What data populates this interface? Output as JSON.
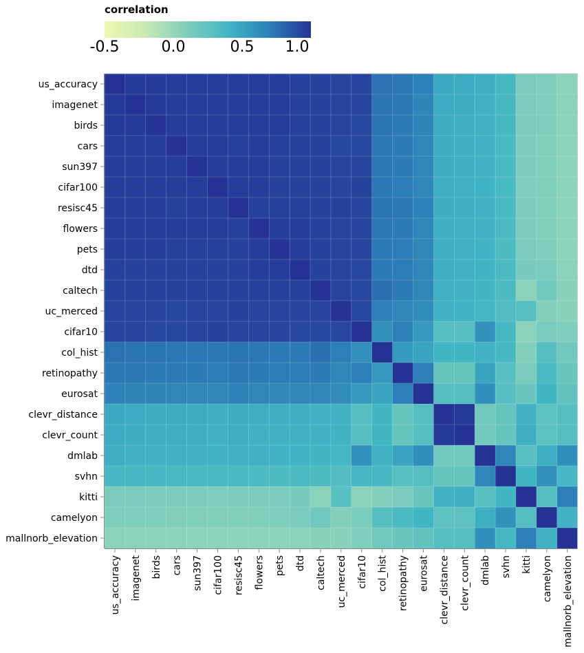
{
  "legend": {
    "title": "correlation",
    "ticks": [
      "-0.5",
      "0.0",
      "0.5",
      "1.0"
    ],
    "colors": [
      "#edf8b1",
      "#c7e9b4",
      "#7fcdbb",
      "#41b6c4",
      "#2c7fb8",
      "#253494"
    ]
  },
  "chart_data": {
    "type": "heatmap",
    "title": "",
    "color_label": "correlation",
    "color_range": [
      -0.5,
      1.0
    ],
    "labels": [
      "us_accuracy",
      "imagenet",
      "birds",
      "cars",
      "sun397",
      "cifar100",
      "resisc45",
      "flowers",
      "pets",
      "dtd",
      "caltech",
      "uc_merced",
      "cifar10",
      "col_hist",
      "retinopathy",
      "eurosat",
      "clevr_distance",
      "clevr_count",
      "dmlab",
      "svhn",
      "kitti",
      "camelyon",
      "smallnorb_elevation"
    ],
    "ytick_labels": [
      "us_accuracy",
      "imagenet",
      "birds",
      "cars",
      "sun397",
      "cifar100",
      "resisc45",
      "flowers",
      "pets",
      "dtd",
      "caltech",
      "uc_merced",
      "cifar10",
      "col_hist",
      "retinopathy",
      "eurosat",
      "clevr_distance",
      "clevr_count",
      "dmlab",
      "svhn",
      "kitti",
      "camelyon",
      "mallnorb_elevation"
    ],
    "xtick_labels": [
      "us_accuracy",
      "imagenet",
      "birds",
      "cars",
      "sun397",
      "cifar100",
      "resisc45",
      "flowers",
      "pets",
      "dtd",
      "caltech",
      "uc_merced",
      "cifar10",
      "col_hist",
      "retinopathy",
      "eurosat",
      "clevr_distance",
      "clevr_count",
      "dmlab",
      "svhn",
      "kitti",
      "camelyon",
      "mallnorb_elevation"
    ],
    "matrix": [
      [
        1.0,
        0.97,
        0.97,
        0.96,
        0.96,
        0.96,
        0.96,
        0.96,
        0.96,
        0.95,
        0.94,
        0.93,
        0.93,
        0.75,
        0.73,
        0.68,
        0.47,
        0.46,
        0.44,
        0.38,
        0.12,
        0.1,
        0.05
      ],
      [
        0.97,
        1.0,
        0.97,
        0.96,
        0.96,
        0.96,
        0.96,
        0.96,
        0.96,
        0.95,
        0.94,
        0.93,
        0.93,
        0.74,
        0.73,
        0.67,
        0.46,
        0.45,
        0.43,
        0.37,
        0.12,
        0.1,
        0.05
      ],
      [
        0.97,
        0.97,
        1.0,
        0.96,
        0.96,
        0.96,
        0.96,
        0.96,
        0.96,
        0.95,
        0.94,
        0.93,
        0.92,
        0.74,
        0.72,
        0.67,
        0.45,
        0.44,
        0.43,
        0.37,
        0.11,
        0.1,
        0.05
      ],
      [
        0.96,
        0.96,
        0.96,
        1.0,
        0.96,
        0.96,
        0.95,
        0.96,
        0.95,
        0.95,
        0.94,
        0.92,
        0.92,
        0.73,
        0.72,
        0.66,
        0.45,
        0.44,
        0.42,
        0.36,
        0.11,
        0.09,
        0.04
      ],
      [
        0.96,
        0.96,
        0.96,
        0.96,
        1.0,
        0.96,
        0.96,
        0.96,
        0.95,
        0.95,
        0.94,
        0.93,
        0.93,
        0.73,
        0.72,
        0.66,
        0.45,
        0.44,
        0.42,
        0.36,
        0.11,
        0.09,
        0.04
      ],
      [
        0.96,
        0.96,
        0.96,
        0.96,
        0.96,
        1.0,
        0.96,
        0.96,
        0.95,
        0.95,
        0.94,
        0.93,
        0.94,
        0.73,
        0.71,
        0.66,
        0.44,
        0.43,
        0.41,
        0.36,
        0.1,
        0.09,
        0.04
      ],
      [
        0.96,
        0.96,
        0.96,
        0.95,
        0.96,
        0.96,
        1.0,
        0.95,
        0.95,
        0.95,
        0.94,
        0.94,
        0.93,
        0.74,
        0.73,
        0.68,
        0.45,
        0.44,
        0.42,
        0.36,
        0.11,
        0.09,
        0.04
      ],
      [
        0.96,
        0.96,
        0.96,
        0.96,
        0.96,
        0.96,
        0.95,
        1.0,
        0.96,
        0.96,
        0.94,
        0.93,
        0.93,
        0.73,
        0.72,
        0.66,
        0.44,
        0.43,
        0.42,
        0.35,
        0.11,
        0.09,
        0.04
      ],
      [
        0.96,
        0.96,
        0.96,
        0.95,
        0.95,
        0.95,
        0.95,
        0.96,
        1.0,
        0.96,
        0.94,
        0.93,
        0.93,
        0.72,
        0.71,
        0.65,
        0.44,
        0.43,
        0.41,
        0.34,
        0.12,
        0.1,
        0.04
      ],
      [
        0.95,
        0.95,
        0.95,
        0.95,
        0.95,
        0.95,
        0.95,
        0.96,
        0.96,
        1.0,
        0.94,
        0.93,
        0.92,
        0.72,
        0.71,
        0.66,
        0.44,
        0.43,
        0.41,
        0.35,
        0.14,
        0.13,
        0.05
      ],
      [
        0.94,
        0.94,
        0.94,
        0.94,
        0.94,
        0.94,
        0.94,
        0.94,
        0.94,
        0.94,
        1.0,
        0.93,
        0.92,
        0.76,
        0.72,
        0.65,
        0.43,
        0.42,
        0.4,
        0.34,
        0.05,
        0.17,
        0.06
      ],
      [
        0.93,
        0.93,
        0.93,
        0.92,
        0.93,
        0.93,
        0.94,
        0.93,
        0.93,
        0.93,
        0.93,
        1.0,
        0.92,
        0.7,
        0.66,
        0.63,
        0.42,
        0.41,
        0.39,
        0.32,
        0.28,
        0.08,
        0.06
      ],
      [
        0.93,
        0.93,
        0.92,
        0.92,
        0.93,
        0.94,
        0.93,
        0.93,
        0.93,
        0.92,
        0.92,
        0.92,
        1.0,
        0.6,
        0.7,
        0.55,
        0.3,
        0.29,
        0.6,
        0.38,
        0.05,
        0.13,
        0.1
      ],
      [
        0.75,
        0.74,
        0.74,
        0.73,
        0.73,
        0.73,
        0.74,
        0.73,
        0.72,
        0.72,
        0.76,
        0.7,
        0.6,
        1.0,
        0.55,
        0.5,
        0.4,
        0.4,
        0.42,
        0.38,
        0.08,
        0.3,
        0.16
      ],
      [
        0.73,
        0.73,
        0.72,
        0.72,
        0.72,
        0.71,
        0.73,
        0.72,
        0.71,
        0.71,
        0.72,
        0.66,
        0.7,
        0.55,
        1.0,
        0.7,
        0.22,
        0.22,
        0.5,
        0.28,
        0.12,
        0.35,
        0.2
      ],
      [
        0.68,
        0.67,
        0.67,
        0.66,
        0.66,
        0.66,
        0.68,
        0.66,
        0.65,
        0.66,
        0.65,
        0.63,
        0.55,
        0.5,
        0.7,
        1.0,
        0.3,
        0.3,
        0.62,
        0.3,
        0.2,
        0.4,
        0.24
      ],
      [
        0.47,
        0.46,
        0.45,
        0.45,
        0.45,
        0.44,
        0.45,
        0.44,
        0.44,
        0.44,
        0.43,
        0.42,
        0.3,
        0.4,
        0.22,
        0.3,
        1.0,
        0.98,
        0.16,
        0.22,
        0.42,
        0.26,
        0.3
      ],
      [
        0.46,
        0.45,
        0.44,
        0.44,
        0.44,
        0.43,
        0.44,
        0.43,
        0.43,
        0.43,
        0.42,
        0.41,
        0.29,
        0.4,
        0.22,
        0.3,
        0.98,
        1.0,
        0.16,
        0.22,
        0.44,
        0.26,
        0.3
      ],
      [
        0.44,
        0.43,
        0.43,
        0.42,
        0.42,
        0.41,
        0.42,
        0.42,
        0.41,
        0.41,
        0.4,
        0.39,
        0.6,
        0.42,
        0.5,
        0.62,
        0.16,
        0.16,
        1.0,
        0.66,
        0.28,
        0.44,
        0.62
      ],
      [
        0.38,
        0.37,
        0.37,
        0.36,
        0.36,
        0.36,
        0.36,
        0.35,
        0.34,
        0.35,
        0.34,
        0.32,
        0.38,
        0.38,
        0.28,
        0.3,
        0.22,
        0.22,
        0.66,
        1.0,
        0.4,
        0.6,
        0.38
      ],
      [
        0.12,
        0.12,
        0.11,
        0.11,
        0.11,
        0.1,
        0.11,
        0.11,
        0.12,
        0.14,
        0.05,
        0.28,
        0.05,
        0.08,
        0.12,
        0.2,
        0.42,
        0.44,
        0.28,
        0.4,
        1.0,
        0.3,
        0.7
      ],
      [
        0.1,
        0.1,
        0.1,
        0.09,
        0.09,
        0.09,
        0.09,
        0.09,
        0.1,
        0.13,
        0.17,
        0.08,
        0.13,
        0.3,
        0.35,
        0.4,
        0.26,
        0.26,
        0.44,
        0.6,
        0.3,
        1.0,
        0.42
      ],
      [
        0.05,
        0.05,
        0.05,
        0.04,
        0.04,
        0.04,
        0.04,
        0.04,
        0.04,
        0.05,
        0.06,
        0.06,
        0.1,
        0.16,
        0.2,
        0.24,
        0.3,
        0.3,
        0.62,
        0.38,
        0.7,
        0.42,
        1.0
      ]
    ]
  }
}
